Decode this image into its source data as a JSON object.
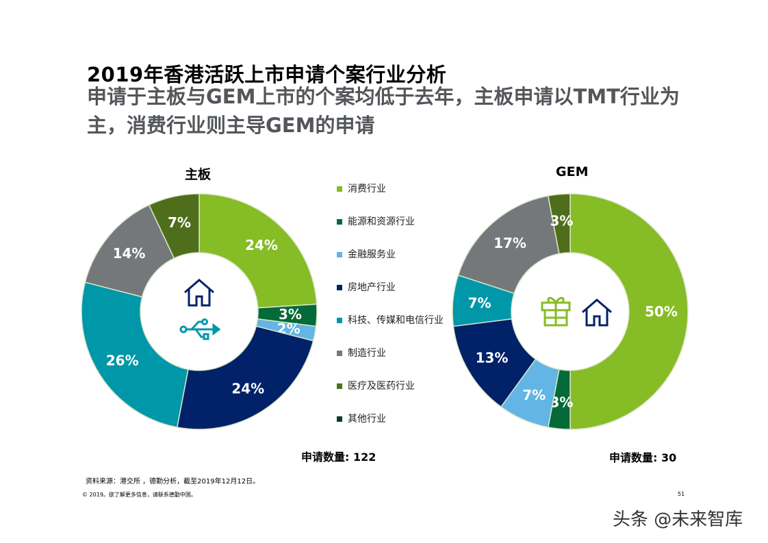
{
  "header": {
    "title": "2019年香港活跃上市申请个案行业分析",
    "subtitle": "申请于主板与GEM上市的个案均低于去年，主板申请以TMT行业为主，消费行业则主导GEM的申请"
  },
  "legend": [
    {
      "label": "消费行业",
      "color": "#86BC25"
    },
    {
      "label": "能源和资源行业",
      "color": "#046A38"
    },
    {
      "label": "金融服务业",
      "color": "#62B5E5"
    },
    {
      "label": "房地产行业",
      "color": "#012169"
    },
    {
      "label": "科技、传媒和电信行业",
      "color": "#0097A9"
    },
    {
      "label": "制造行业",
      "color": "#75787B"
    },
    {
      "label": "医疗及医药行业",
      "color": "#4F6E1B"
    },
    {
      "label": "其他行业",
      "color": "#0B3F25"
    }
  ],
  "chart_data": [
    {
      "type": "donut",
      "title": "主板",
      "categories": [
        "消费行业",
        "能源和资源行业",
        "金融服务业",
        "房地产行业",
        "科技、传媒和电信行业",
        "制造行业",
        "医疗及医药行业",
        "其他行业"
      ],
      "values": [
        24,
        3,
        2,
        24,
        26,
        14,
        7,
        0
      ],
      "labels": [
        "24%",
        "3%",
        "2%",
        "24%",
        "26%",
        "14%",
        "7%",
        ""
      ],
      "center_icons": [
        "house-icon",
        "usb-icon"
      ],
      "count_label": "申请数量: 122"
    },
    {
      "type": "donut",
      "title": "GEM",
      "categories": [
        "消费行业",
        "能源和资源行业",
        "金融服务业",
        "房地产行业",
        "科技、传媒和电信行业",
        "制造行业",
        "医疗及医药行业",
        "其他行业"
      ],
      "values": [
        50,
        3,
        7,
        13,
        7,
        17,
        3,
        0
      ],
      "labels": [
        "50%",
        "3%",
        "7%",
        "13%",
        "7%",
        "17%",
        "3%",
        ""
      ],
      "center_icons": [
        "gift-icon",
        "house-icon"
      ],
      "count_label": "申请数量: 30"
    }
  ],
  "footer": {
    "source": "资料来源：港交所 ，德勤分析，截至2019年12月12日。",
    "copyright": "© 2019。欲了解更多信息，请联系德勤中国。",
    "page": "51"
  },
  "watermark": "头条 @未来智库"
}
